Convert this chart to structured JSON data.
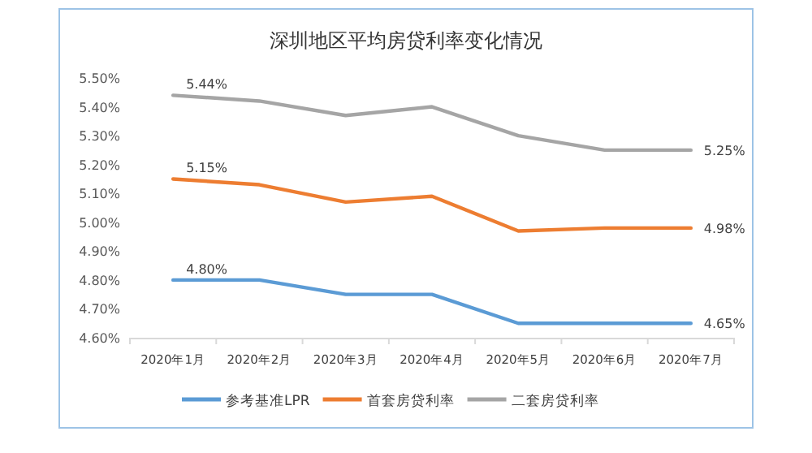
{
  "chart_data": {
    "type": "line",
    "title": "深圳地区平均房贷利率变化情况",
    "categories": [
      "2020年1月",
      "2020年2月",
      "2020年3月",
      "2020年4月",
      "2020年5月",
      "2020年6月",
      "2020年7月"
    ],
    "series": [
      {
        "name": "参考基准LPR",
        "color": "#5b9bd5",
        "values": [
          4.8,
          4.8,
          4.75,
          4.75,
          4.65,
          4.65,
          4.65
        ],
        "value_labels": [
          "4.80%",
          null,
          null,
          null,
          null,
          null,
          "4.65%"
        ]
      },
      {
        "name": "首套房贷利率",
        "color": "#ed7d31",
        "values": [
          5.15,
          5.13,
          5.07,
          5.09,
          4.97,
          4.98,
          4.98
        ],
        "value_labels": [
          "5.15%",
          null,
          null,
          null,
          null,
          null,
          "4.98%"
        ]
      },
      {
        "name": "二套房贷利率",
        "color": "#a5a5a5",
        "values": [
          5.44,
          5.42,
          5.37,
          5.4,
          5.3,
          5.25,
          5.25
        ],
        "value_labels": [
          "5.44%",
          null,
          null,
          null,
          null,
          null,
          "5.25%"
        ]
      }
    ],
    "ylim": [
      4.6,
      5.5
    ],
    "yticks": [
      {
        "value": 4.6,
        "label": "4.60%"
      },
      {
        "value": 4.7,
        "label": "4.70%"
      },
      {
        "value": 4.8,
        "label": "4.80%"
      },
      {
        "value": 4.9,
        "label": "4.90%"
      },
      {
        "value": 5.0,
        "label": "5.00%"
      },
      {
        "value": 5.1,
        "label": "5.10%"
      },
      {
        "value": 5.2,
        "label": "5.20%"
      },
      {
        "value": 5.3,
        "label": "5.30%"
      },
      {
        "value": 5.4,
        "label": "5.40%"
      },
      {
        "value": 5.5,
        "label": "5.50%"
      }
    ],
    "grid": false,
    "legend": "bottom",
    "marker": "none",
    "line_style": "solid"
  }
}
